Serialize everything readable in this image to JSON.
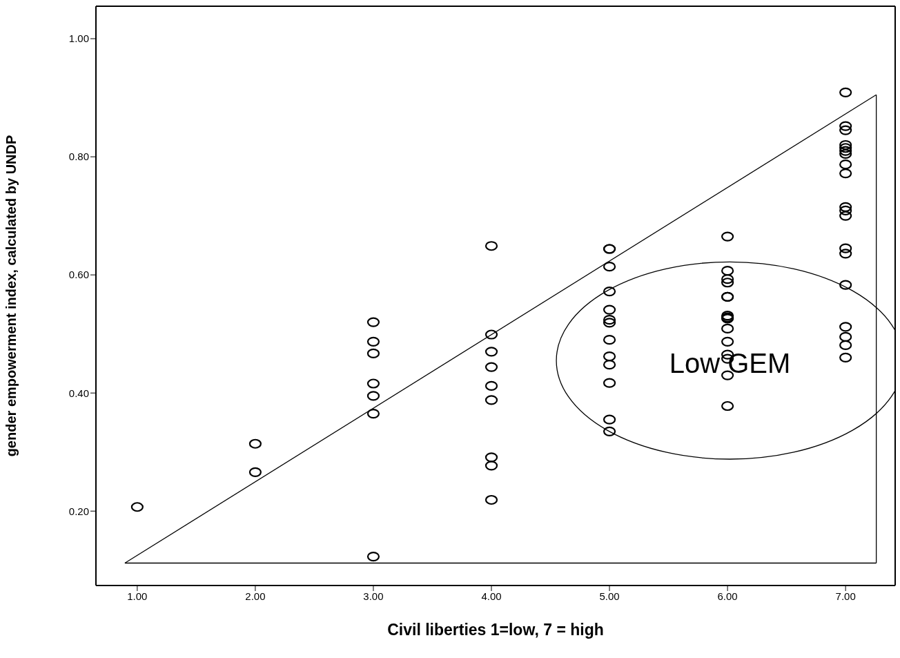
{
  "chart_data": {
    "type": "scatter",
    "xlabel": "Civil liberties 1=low, 7 = high",
    "ylabel": "gender empowerment index, calculated by UNDP",
    "series": [
      {
        "color": "#000000",
        "marker": "circle",
        "x": [
          1,
          2,
          2,
          3,
          3,
          3,
          3,
          3,
          3,
          3,
          4,
          4,
          4,
          4,
          4,
          4,
          4,
          4,
          4,
          5,
          5,
          5,
          5,
          5,
          5,
          5,
          5,
          5,
          5,
          5,
          5,
          5,
          6,
          6,
          6,
          6,
          6,
          6,
          6,
          6,
          6,
          6,
          6,
          6,
          6,
          6,
          6,
          7,
          7,
          7,
          7,
          7,
          7,
          7,
          7,
          7,
          7,
          7,
          7,
          7,
          7,
          7,
          7,
          7,
          7,
          7
        ],
        "values": [
          0.207,
          0.314,
          0.266,
          0.52,
          0.487,
          0.467,
          0.416,
          0.395,
          0.365,
          0.123,
          0.649,
          0.499,
          0.47,
          0.444,
          0.412,
          0.388,
          0.291,
          0.277,
          0.219,
          0.644,
          0.644,
          0.614,
          0.572,
          0.541,
          0.524,
          0.519,
          0.49,
          0.462,
          0.448,
          0.417,
          0.355,
          0.335,
          0.665,
          0.607,
          0.593,
          0.587,
          0.563,
          0.563,
          0.531,
          0.528,
          0.526,
          0.509,
          0.487,
          0.465,
          0.458,
          0.43,
          0.378,
          0.909,
          0.852,
          0.845,
          0.82,
          0.815,
          0.81,
          0.805,
          0.787,
          0.772,
          0.715,
          0.709,
          0.7,
          0.645,
          0.636,
          0.583,
          0.512,
          0.495,
          0.481,
          0.46
        ]
      },
      {
        "type": "line",
        "color": "#000000",
        "x": [
          0.895,
          7.26
        ],
        "values": [
          0.112,
          0.905
        ]
      },
      {
        "type": "line",
        "color": "#000000",
        "x": [
          7.26,
          7.26
        ],
        "values": [
          0.905,
          0.112
        ]
      },
      {
        "type": "line",
        "color": "#000000",
        "x": [
          0.895,
          7.26
        ],
        "values": [
          0.112,
          0.112
        ]
      }
    ],
    "xlim": [
      0.65,
      7.42
    ],
    "ylim": [
      0.074,
      1.055
    ],
    "xticks": [
      {
        "value": 1,
        "label": "1.00"
      },
      {
        "value": 2,
        "label": "2.00"
      },
      {
        "value": 3,
        "label": "3.00"
      },
      {
        "value": 4,
        "label": "4.00"
      },
      {
        "value": 5,
        "label": "5.00"
      },
      {
        "value": 6,
        "label": "6.00"
      },
      {
        "value": 7,
        "label": "7.00"
      }
    ],
    "yticks": [
      {
        "value": 0.2,
        "label": "0.20"
      },
      {
        "value": 0.4,
        "label": "0.40"
      },
      {
        "value": 0.6,
        "label": "0.60"
      },
      {
        "value": 0.8,
        "label": "0.80"
      },
      {
        "value": 1,
        "label": "1.00"
      }
    ],
    "annotations": [
      {
        "text": "Low GEM",
        "x": 6.02,
        "y": 0.45
      }
    ]
  }
}
